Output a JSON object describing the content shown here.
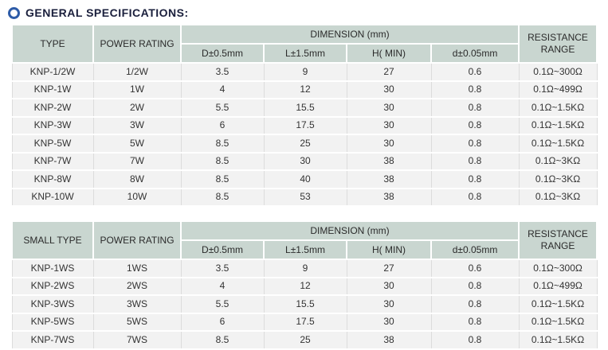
{
  "page": {
    "title": "GENERAL SPECIFICATIONS:",
    "title_icon": "ring-icon"
  },
  "colors": {
    "header_bg": "#c9d6d0",
    "row_bg": "#f2f2f2",
    "cell_border": "#ffffff",
    "column_divider": "#dcdcdc",
    "title_text": "#1a1f3c",
    "title_icon_blue": "#2e5ca8",
    "body_text": "#333333"
  },
  "tables": [
    {
      "name": "general-type-table",
      "headers": {
        "type": "TYPE",
        "power_rating": "POWER RATING",
        "dimension_group": "DIMENSION (mm)",
        "sub_d_upper": "D±0.5mm",
        "sub_l": "L±1.5mm",
        "sub_h": "H( MIN)",
        "sub_d_lower": "d±0.05mm",
        "resistance_range": "RESISTANCE RANGE"
      },
      "rows": [
        [
          "KNP-1/2W",
          "1/2W",
          "3.5",
          "9",
          "27",
          "0.6",
          "0.1Ω~300Ω"
        ],
        [
          "KNP-1W",
          "1W",
          "4",
          "12",
          "30",
          "0.8",
          "0.1Ω~499Ω"
        ],
        [
          "KNP-2W",
          "2W",
          "5.5",
          "15.5",
          "30",
          "0.8",
          "0.1Ω~1.5KΩ"
        ],
        [
          "KNP-3W",
          "3W",
          "6",
          "17.5",
          "30",
          "0.8",
          "0.1Ω~1.5KΩ"
        ],
        [
          "KNP-5W",
          "5W",
          "8.5",
          "25",
          "30",
          "0.8",
          "0.1Ω~1.5KΩ"
        ],
        [
          "KNP-7W",
          "7W",
          "8.5",
          "30",
          "38",
          "0.8",
          "0.1Ω~3KΩ"
        ],
        [
          "KNP-8W",
          "8W",
          "8.5",
          "40",
          "38",
          "0.8",
          "0.1Ω~3KΩ"
        ],
        [
          "KNP-10W",
          "10W",
          "8.5",
          "53",
          "38",
          "0.8",
          "0.1Ω~3KΩ"
        ]
      ]
    },
    {
      "name": "small-type-table",
      "headers": {
        "type": "SMALL TYPE",
        "power_rating": "POWER RATING",
        "dimension_group": "DIMENSION (mm)",
        "sub_d_upper": "D±0.5mm",
        "sub_l": "L±1.5mm",
        "sub_h": "H( MIN)",
        "sub_d_lower": "d±0.05mm",
        "resistance_range": "RESISTANCE RANGE"
      },
      "rows": [
        [
          "KNP-1WS",
          "1WS",
          "3.5",
          "9",
          "27",
          "0.6",
          "0.1Ω~300Ω"
        ],
        [
          "KNP-2WS",
          "2WS",
          "4",
          "12",
          "30",
          "0.8",
          "0.1Ω~499Ω"
        ],
        [
          "KNP-3WS",
          "3WS",
          "5.5",
          "15.5",
          "30",
          "0.8",
          "0.1Ω~1.5KΩ"
        ],
        [
          "KNP-5WS",
          "5WS",
          "6",
          "17.5",
          "30",
          "0.8",
          "0.1Ω~1.5KΩ"
        ],
        [
          "KNP-7WS",
          "7WS",
          "8.5",
          "25",
          "38",
          "0.8",
          "0.1Ω~1.5KΩ"
        ]
      ]
    }
  ]
}
